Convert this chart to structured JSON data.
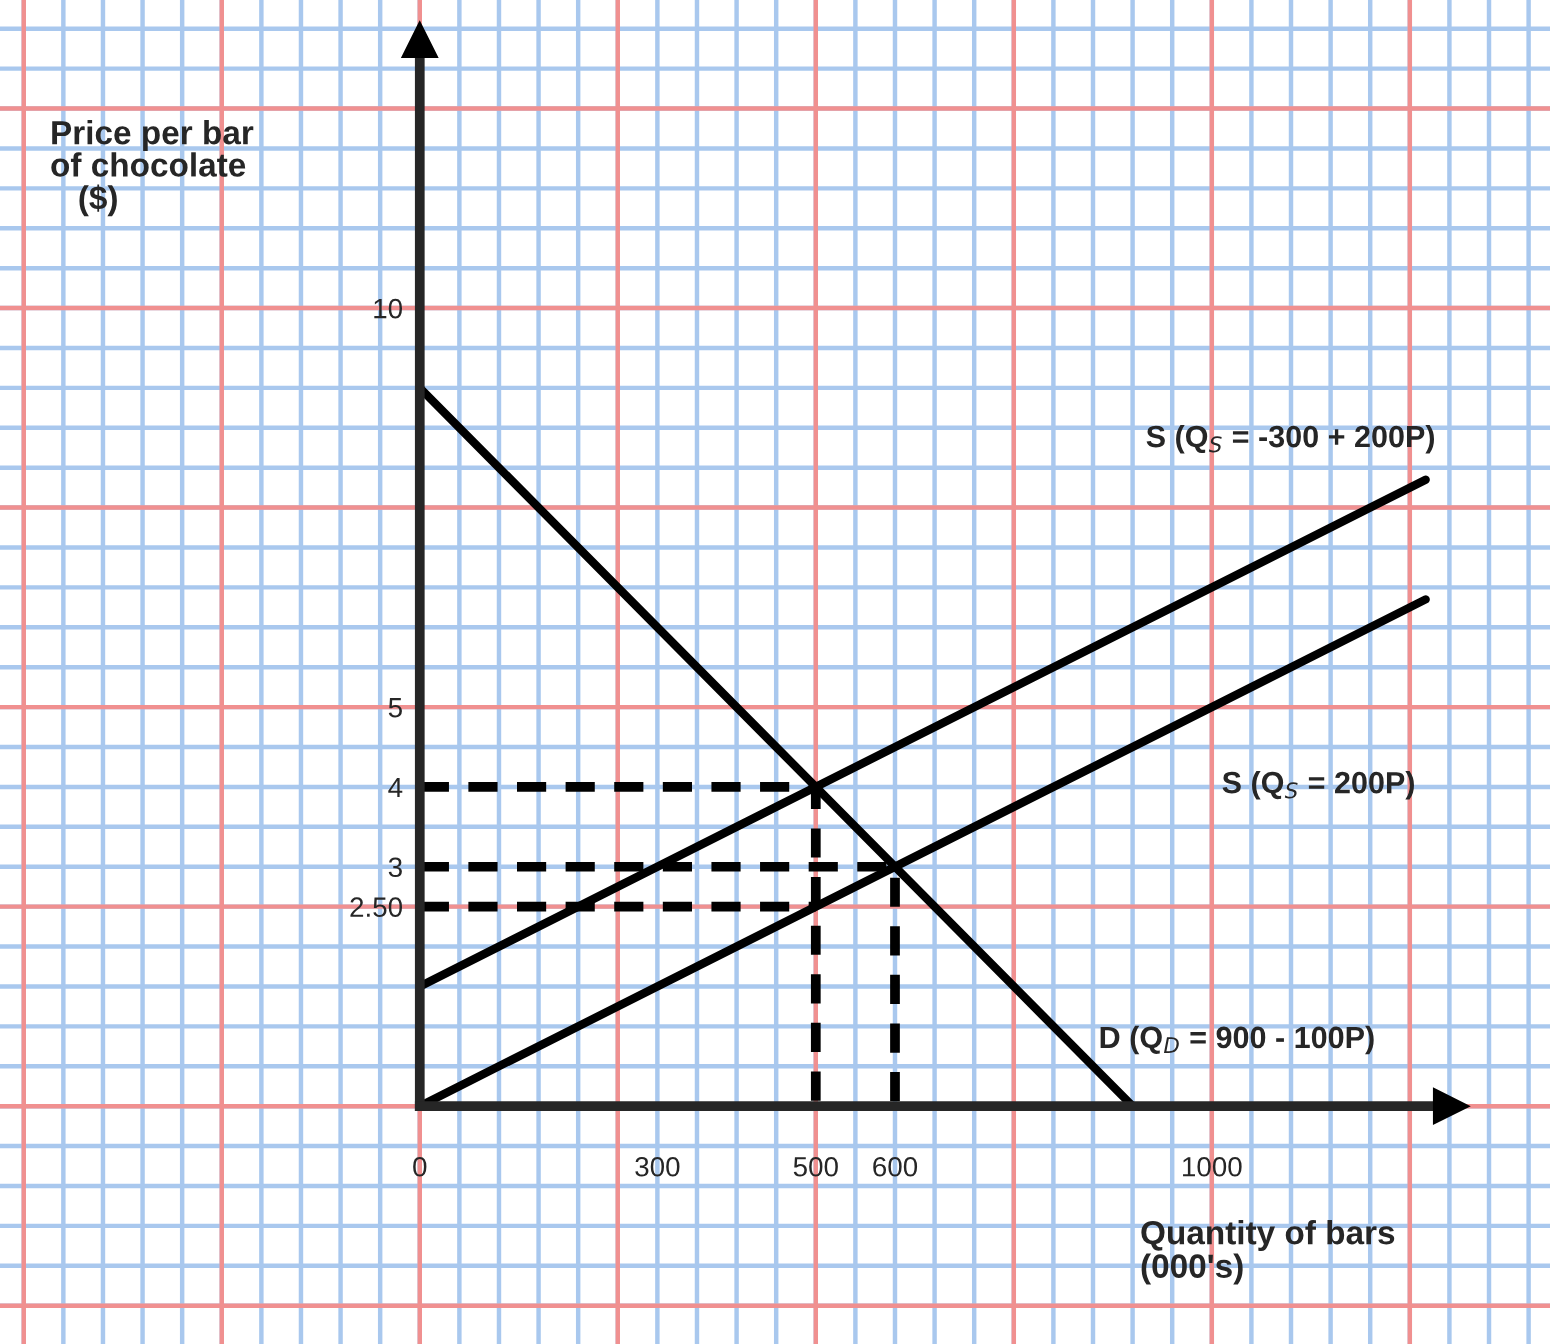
{
  "chart_data": {
    "type": "line",
    "xlabel": "Quantity of bars\n(000's)",
    "ylabel": "Price per bar\nof chocolate\n   ($)",
    "series": [
      {
        "name": "S (Q$_{S}$ = -300 + 200P)",
        "color": "#000000",
        "x": [
          0,
          1270
        ],
        "values": [
          1.5,
          7.85
        ]
      },
      {
        "name": "S (Q$_{S}$ = 200P)",
        "color": "#000000",
        "x": [
          0,
          1270
        ],
        "values": [
          0,
          6.35
        ]
      },
      {
        "name": "D (Q$_{D}$ = 900 - 100P)",
        "color": "#000000",
        "x": [
          0,
          900
        ],
        "values": [
          9,
          0
        ]
      },
      {
        "color": "#000000",
        "x": [
          0,
          500,
          500
        ],
        "values": [
          4,
          4,
          0
        ],
        "line_style": "dashed"
      },
      {
        "color": "#000000",
        "x": [
          0,
          600,
          600
        ],
        "values": [
          3,
          3,
          0
        ],
        "line_style": "dashed"
      },
      {
        "color": "#000000",
        "x": [
          0,
          500
        ],
        "values": [
          2.5,
          2.5
        ],
        "line_style": "dashed"
      }
    ],
    "xlim": [
      -530,
      1427
    ],
    "ylim": [
      -2.98,
      13.86
    ],
    "xticks": [
      0,
      300,
      500,
      600,
      1000
    ],
    "yticks": [
      10,
      5,
      4,
      3,
      {
        "value": 2.5,
        "label": "2.50"
      }
    ],
    "grid": true,
    "legend": false,
    "marker": "none",
    "line_style": "solid"
  }
}
